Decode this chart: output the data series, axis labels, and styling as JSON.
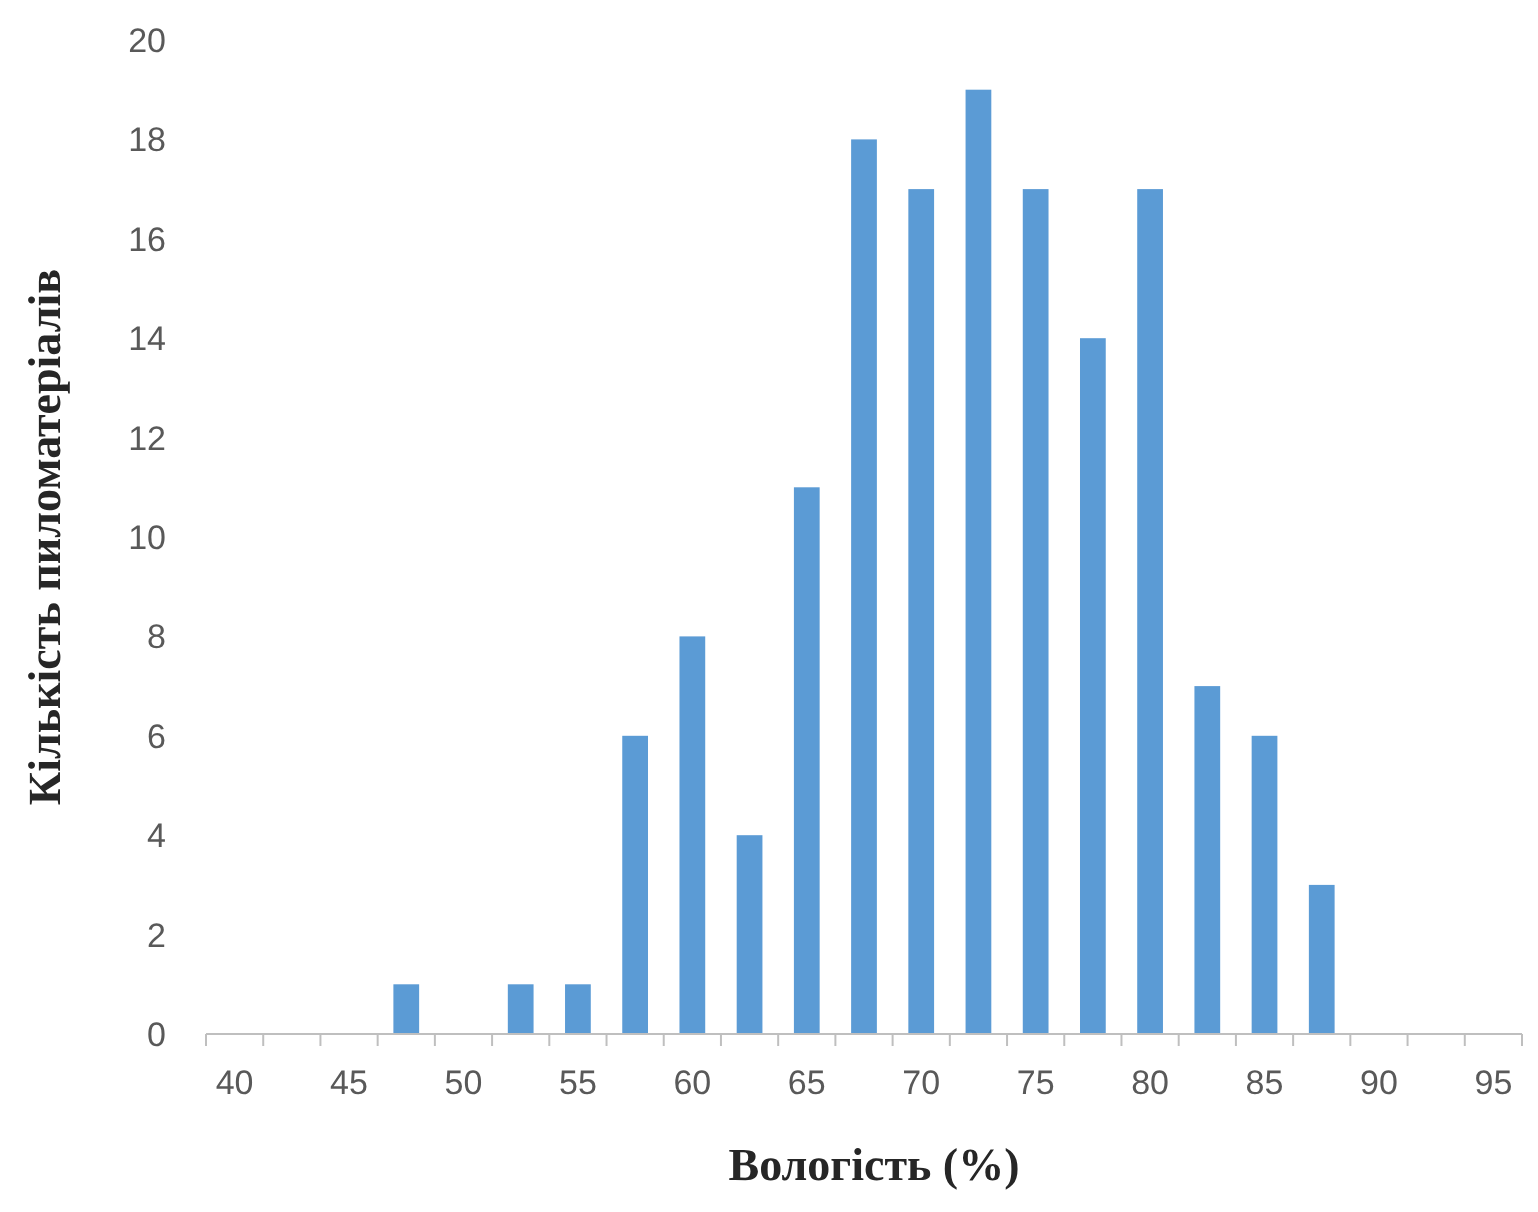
{
  "chart_data": {
    "type": "bar",
    "xlabel": "Вологість (%)",
    "ylabel": "Кількість пиломатеріалів",
    "categories": [
      "40",
      null,
      "45",
      null,
      "50",
      null,
      "55",
      null,
      "60",
      null,
      "65",
      null,
      "70",
      null,
      "75",
      null,
      "80",
      null,
      "85",
      null,
      "90",
      null,
      "95"
    ],
    "values": [
      0,
      0,
      0,
      1,
      0,
      1,
      1,
      6,
      8,
      4,
      11,
      18,
      17,
      19,
      17,
      14,
      17,
      7,
      6,
      3,
      0,
      0,
      0
    ],
    "color": "#5b9bd5",
    "ylim": [
      0,
      20
    ],
    "yticks": [
      0,
      2,
      4,
      6,
      8,
      10,
      12,
      14,
      16,
      18,
      20
    ],
    "grid": false
  }
}
